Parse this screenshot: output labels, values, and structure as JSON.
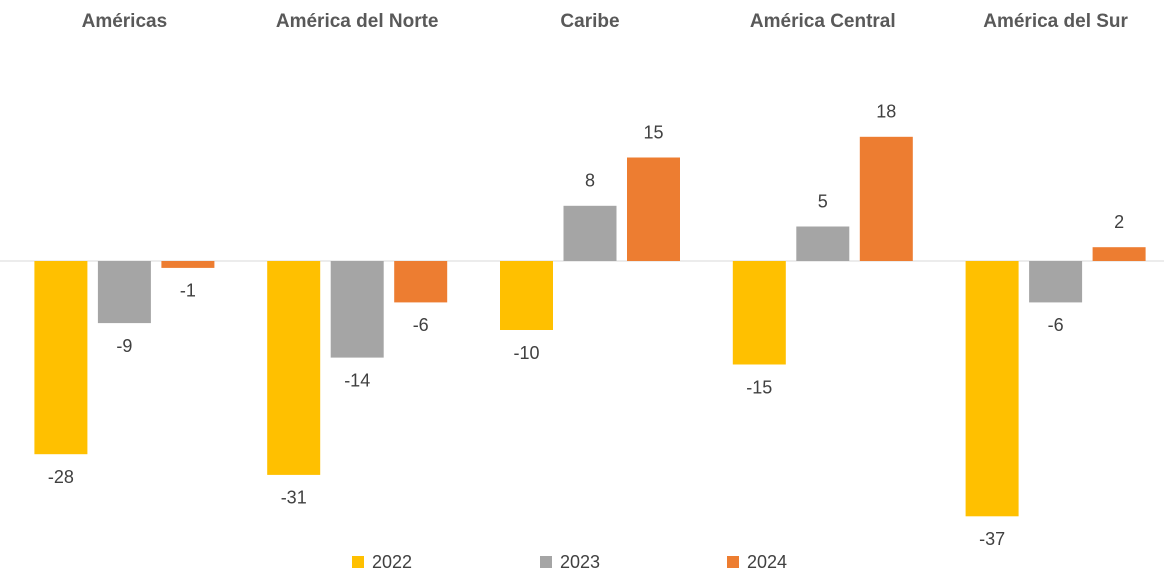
{
  "chart_data": {
    "type": "bar",
    "categories": [
      "Américas",
      "América del Norte",
      "Caribe",
      "América Central",
      "América del Sur"
    ],
    "series": [
      {
        "name": "2022",
        "color": "#FFC000",
        "values": [
          -28,
          -31,
          -10,
          -15,
          -37
        ]
      },
      {
        "name": "2023",
        "color": "#A5A5A5",
        "values": [
          -9,
          -14,
          8,
          5,
          -6
        ]
      },
      {
        "name": "2024",
        "color": "#ED7D31",
        "values": [
          -1,
          -6,
          15,
          18,
          2
        ]
      }
    ],
    "ylim": [
      -40,
      20
    ],
    "legend": "bottom"
  }
}
